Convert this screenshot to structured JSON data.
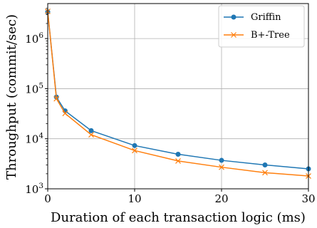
{
  "chart_data": {
    "type": "line",
    "xlabel": "Duration of each transaction logic (ms)",
    "ylabel": "Throughput (commit/sec)",
    "x_scale": "linear",
    "y_scale": "log",
    "xlim": [
      0,
      30
    ],
    "ylim": [
      1000,
      5000000
    ],
    "x_ticks": [
      0,
      10,
      20,
      30
    ],
    "x_tick_labels": [
      "0",
      "10",
      "20",
      "30"
    ],
    "y_ticks": [
      1000,
      10000,
      100000,
      1000000
    ],
    "y_tick_labels": [
      {
        "base": "10",
        "exp": "3"
      },
      {
        "base": "10",
        "exp": "4"
      },
      {
        "base": "10",
        "exp": "5"
      },
      {
        "base": "10",
        "exp": "6"
      }
    ],
    "grid": true,
    "legend_position": "top-right",
    "x": [
      0,
      1,
      2,
      5,
      10,
      15,
      20,
      25,
      30
    ],
    "series": [
      {
        "name": "Griffin",
        "color": "#1f77b4",
        "marker": "circle",
        "values": [
          3400000,
          68000,
          36000,
          14500,
          7300,
          4900,
          3700,
          3000,
          2500
        ]
      },
      {
        "name": "B+-Tree",
        "color": "#ff7f0e",
        "marker": "x",
        "values": [
          3500000,
          63000,
          32000,
          12000,
          5800,
          3600,
          2700,
          2100,
          1800
        ]
      }
    ]
  }
}
